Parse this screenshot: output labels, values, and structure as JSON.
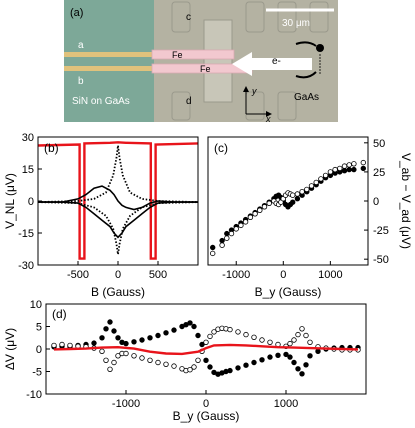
{
  "panel_a": {
    "label": "(a)",
    "scale_bar": "30 μm",
    "contacts": [
      "a",
      "b",
      "c",
      "d"
    ],
    "fe_label": "Fe",
    "electron_label": "e-",
    "left_region": "SiN on GaAs",
    "right_region": "GaAs",
    "axis_x": "x",
    "axis_y": "y",
    "colors": {
      "left_bg": "#7da898",
      "right_bg": "#b4b2a2",
      "fe": "#f2c8cf",
      "lead": "#e0c27c"
    }
  },
  "chart_data": [
    {
      "id": "b",
      "type": "line",
      "label": "(b)",
      "xlabel": "B (Gauss)",
      "ylabel": "V_NL (μV)",
      "xlim": [
        -1000,
        1000
      ],
      "ylim": [
        -30,
        30
      ],
      "xticks": [
        -500,
        0,
        500
      ],
      "xtick_labels": [
        "-500",
        "0",
        "500"
      ],
      "yticks": [
        -30,
        -15,
        0,
        15,
        30
      ],
      "ytick_labels": [
        "-30",
        "-15",
        "0",
        "15",
        "30"
      ],
      "series": [
        {
          "color": "#e8141b",
          "style": "line",
          "x": [
            -1000,
            -480,
            -480,
            -420,
            -420,
            -100,
            0,
            100,
            410,
            410,
            470,
            470,
            1000
          ],
          "y": [
            26,
            26.5,
            -27,
            -27,
            27,
            27.3,
            27.5,
            27.3,
            27,
            -27,
            -27,
            26.5,
            27
          ]
        },
        {
          "color": "#000000",
          "style": "line",
          "x": [
            -1000,
            -700,
            -500,
            -400,
            -300,
            -200,
            -100,
            -50,
            0,
            50,
            100,
            200,
            300,
            400,
            500,
            700,
            1000
          ],
          "y": [
            -0.5,
            -0.5,
            -1,
            -3,
            -6,
            -9,
            -12,
            -15,
            -17,
            -15,
            -12,
            -9,
            -6,
            -3,
            -1,
            -0.5,
            -0.5
          ]
        },
        {
          "color": "#000000",
          "style": "line",
          "x": [
            -1000,
            -700,
            -500,
            -400,
            -300,
            -200,
            -100,
            -50,
            0,
            50,
            100,
            200,
            300,
            400,
            500,
            700,
            1000
          ],
          "y": [
            -0.5,
            -0.5,
            1,
            3,
            6,
            7,
            5,
            3,
            0,
            -2,
            -3,
            -4,
            -3,
            -1,
            0,
            -0.5,
            -0.5
          ]
        },
        {
          "color": "#000000",
          "style": "dotted",
          "x": [
            -1000,
            -500,
            -300,
            -150,
            -60,
            -20,
            0,
            20,
            60,
            150,
            300,
            500,
            1000
          ],
          "y": [
            -0.5,
            -1,
            -3,
            -7,
            -13,
            -20,
            -25,
            -20,
            -13,
            -7,
            -3,
            -1,
            -0.5
          ]
        },
        {
          "color": "#000000",
          "style": "dotted",
          "x": [
            -1000,
            -500,
            -300,
            -150,
            -60,
            -20,
            0,
            20,
            60,
            150,
            300,
            500,
            1000
          ],
          "y": [
            -0.5,
            0,
            1,
            4,
            12,
            20,
            26,
            20,
            12,
            4,
            1,
            0,
            -0.5
          ]
        }
      ]
    },
    {
      "id": "c",
      "type": "scatter",
      "label": "(c)",
      "xlabel": "B_y (Gauss)",
      "ylabel": "V_ab − V_ad (μV)",
      "xlim": [
        -1600,
        1800
      ],
      "ylim": [
        -55,
        55
      ],
      "xticks": [
        -1000,
        0,
        1000
      ],
      "xtick_labels": [
        "-1000",
        "0",
        "1000"
      ],
      "yticks": [
        -50,
        -25,
        0,
        25,
        50
      ],
      "ytick_labels": [
        "-50",
        "-25",
        "0",
        "25",
        "50"
      ],
      "series": [
        {
          "color": "#000000",
          "marker": "filled",
          "x": [
            -1500,
            -1300,
            -1200,
            -1100,
            -1000,
            -900,
            -800,
            -700,
            -600,
            -500,
            -400,
            -300,
            -200,
            -150,
            -100,
            -50,
            0,
            50,
            100,
            150,
            200,
            300,
            400,
            500,
            600,
            700,
            800,
            900,
            1000,
            1100,
            1200,
            1300,
            1400,
            1500,
            1700
          ],
          "y": [
            -40,
            -34,
            -28,
            -25,
            -22,
            -19,
            -16,
            -13,
            -10,
            -7,
            -4,
            -1,
            2,
            4,
            5,
            3,
            0,
            -3,
            -5,
            -3,
            -1,
            2,
            5,
            8,
            11,
            14,
            17,
            20,
            22,
            24,
            25,
            26,
            27,
            27,
            28
          ]
        },
        {
          "color": "#000000",
          "marker": "open",
          "x": [
            -1500,
            -1300,
            -1200,
            -1100,
            -1000,
            -900,
            -800,
            -700,
            -600,
            -500,
            -400,
            -300,
            -200,
            -150,
            -100,
            -50,
            0,
            50,
            100,
            150,
            200,
            300,
            400,
            500,
            600,
            700,
            800,
            900,
            1000,
            1100,
            1200,
            1300,
            1400,
            1500,
            1700
          ],
          "y": [
            -45,
            -38,
            -32,
            -28,
            -24,
            -21,
            -18,
            -14,
            -11,
            -8,
            -5,
            -2,
            0,
            -2,
            -3,
            -1,
            2,
            5,
            7,
            6,
            5,
            6,
            8,
            10,
            13,
            16,
            19,
            22,
            25,
            27,
            28,
            30,
            31,
            32,
            33
          ]
        }
      ]
    },
    {
      "id": "d",
      "type": "scatter",
      "label": "(d)",
      "xlabel": "B_y (Gauss)",
      "ylabel": "ΔV (μV)",
      "xlim": [
        -2000,
        2000
      ],
      "ylim": [
        -10,
        10
      ],
      "xticks": [
        -1000,
        0,
        1000
      ],
      "xtick_labels": [
        "-1000",
        "0",
        "1000"
      ],
      "yticks": [
        -10,
        -5,
        0,
        5,
        10
      ],
      "ytick_labels": [
        "-10",
        "-5",
        "0",
        "5",
        "10"
      ],
      "series": [
        {
          "color": "#000000",
          "marker": "filled",
          "x": [
            -1900,
            -1800,
            -1700,
            -1600,
            -1500,
            -1400,
            -1300,
            -1250,
            -1200,
            -1150,
            -1100,
            -1050,
            -1000,
            -900,
            -800,
            -700,
            -600,
            -500,
            -400,
            -300,
            -250,
            -200,
            -150,
            -100,
            -50,
            0,
            50,
            100,
            150,
            200,
            250,
            300,
            400,
            500,
            600,
            700,
            800,
            900,
            1000,
            1050,
            1100,
            1150,
            1200,
            1250,
            1300,
            1400,
            1500,
            1600,
            1700,
            1800,
            1900
          ],
          "y": [
            0.5,
            0.6,
            0.5,
            0.8,
            1.0,
            1.3,
            2.5,
            4.5,
            6.0,
            4.0,
            2.5,
            1.5,
            1.2,
            1.6,
            2.0,
            2.5,
            3.0,
            3.6,
            4.2,
            5.0,
            5.4,
            5.8,
            5.0,
            3.0,
            1.0,
            -2.5,
            -4.0,
            -5.2,
            -5.6,
            -5.3,
            -5.0,
            -4.8,
            -4.2,
            -3.6,
            -3.0,
            -2.4,
            -1.8,
            -1.4,
            -1.2,
            -1.8,
            -3.0,
            -4.4,
            -5.5,
            -3.5,
            -1.5,
            -0.5,
            0.0,
            0.2,
            0.3,
            0.3,
            0.3
          ]
        },
        {
          "color": "#000000",
          "marker": "open",
          "x": [
            -1900,
            -1800,
            -1700,
            -1600,
            -1500,
            -1400,
            -1300,
            -1250,
            -1200,
            -1150,
            -1100,
            -1050,
            -1000,
            -900,
            -800,
            -700,
            -600,
            -500,
            -400,
            -300,
            -250,
            -200,
            -150,
            -100,
            -50,
            0,
            50,
            100,
            150,
            200,
            250,
            300,
            400,
            500,
            600,
            700,
            800,
            900,
            1000,
            1050,
            1100,
            1150,
            1200,
            1250,
            1300,
            1400,
            1500,
            1600,
            1700,
            1800,
            1900
          ],
          "y": [
            0.8,
            1.0,
            0.8,
            0.6,
            0.5,
            0.2,
            -0.5,
            -2.5,
            -4.5,
            -3.0,
            -1.5,
            -1.0,
            -1.0,
            -1.5,
            -2.0,
            -2.5,
            -3.0,
            -3.4,
            -3.8,
            -4.4,
            -4.8,
            -4.6,
            -4.0,
            -2.5,
            -0.5,
            1.5,
            2.8,
            3.8,
            4.4,
            4.6,
            4.5,
            4.3,
            3.8,
            3.2,
            2.6,
            2.0,
            1.5,
            1.0,
            0.6,
            1.2,
            2.0,
            3.2,
            4.5,
            3.0,
            1.5,
            0.5,
            0.2,
            0.0,
            -0.2,
            -0.2,
            -0.2
          ]
        },
        {
          "color": "#e8141b",
          "marker": "line",
          "x": [
            -1900,
            -1700,
            -1500,
            -1300,
            -1100,
            -900,
            -700,
            -500,
            -300,
            -100,
            0,
            100,
            300,
            500,
            700,
            900,
            1100,
            1300,
            1500,
            1700,
            1900
          ],
          "y": [
            -0.1,
            0.0,
            0.1,
            0.3,
            0.4,
            0.1,
            -0.6,
            -1.0,
            -1.1,
            -0.6,
            0.2,
            0.8,
            0.9,
            0.8,
            0.6,
            0.4,
            0.3,
            0.2,
            0.1,
            0.0,
            -0.1
          ]
        }
      ]
    }
  ]
}
